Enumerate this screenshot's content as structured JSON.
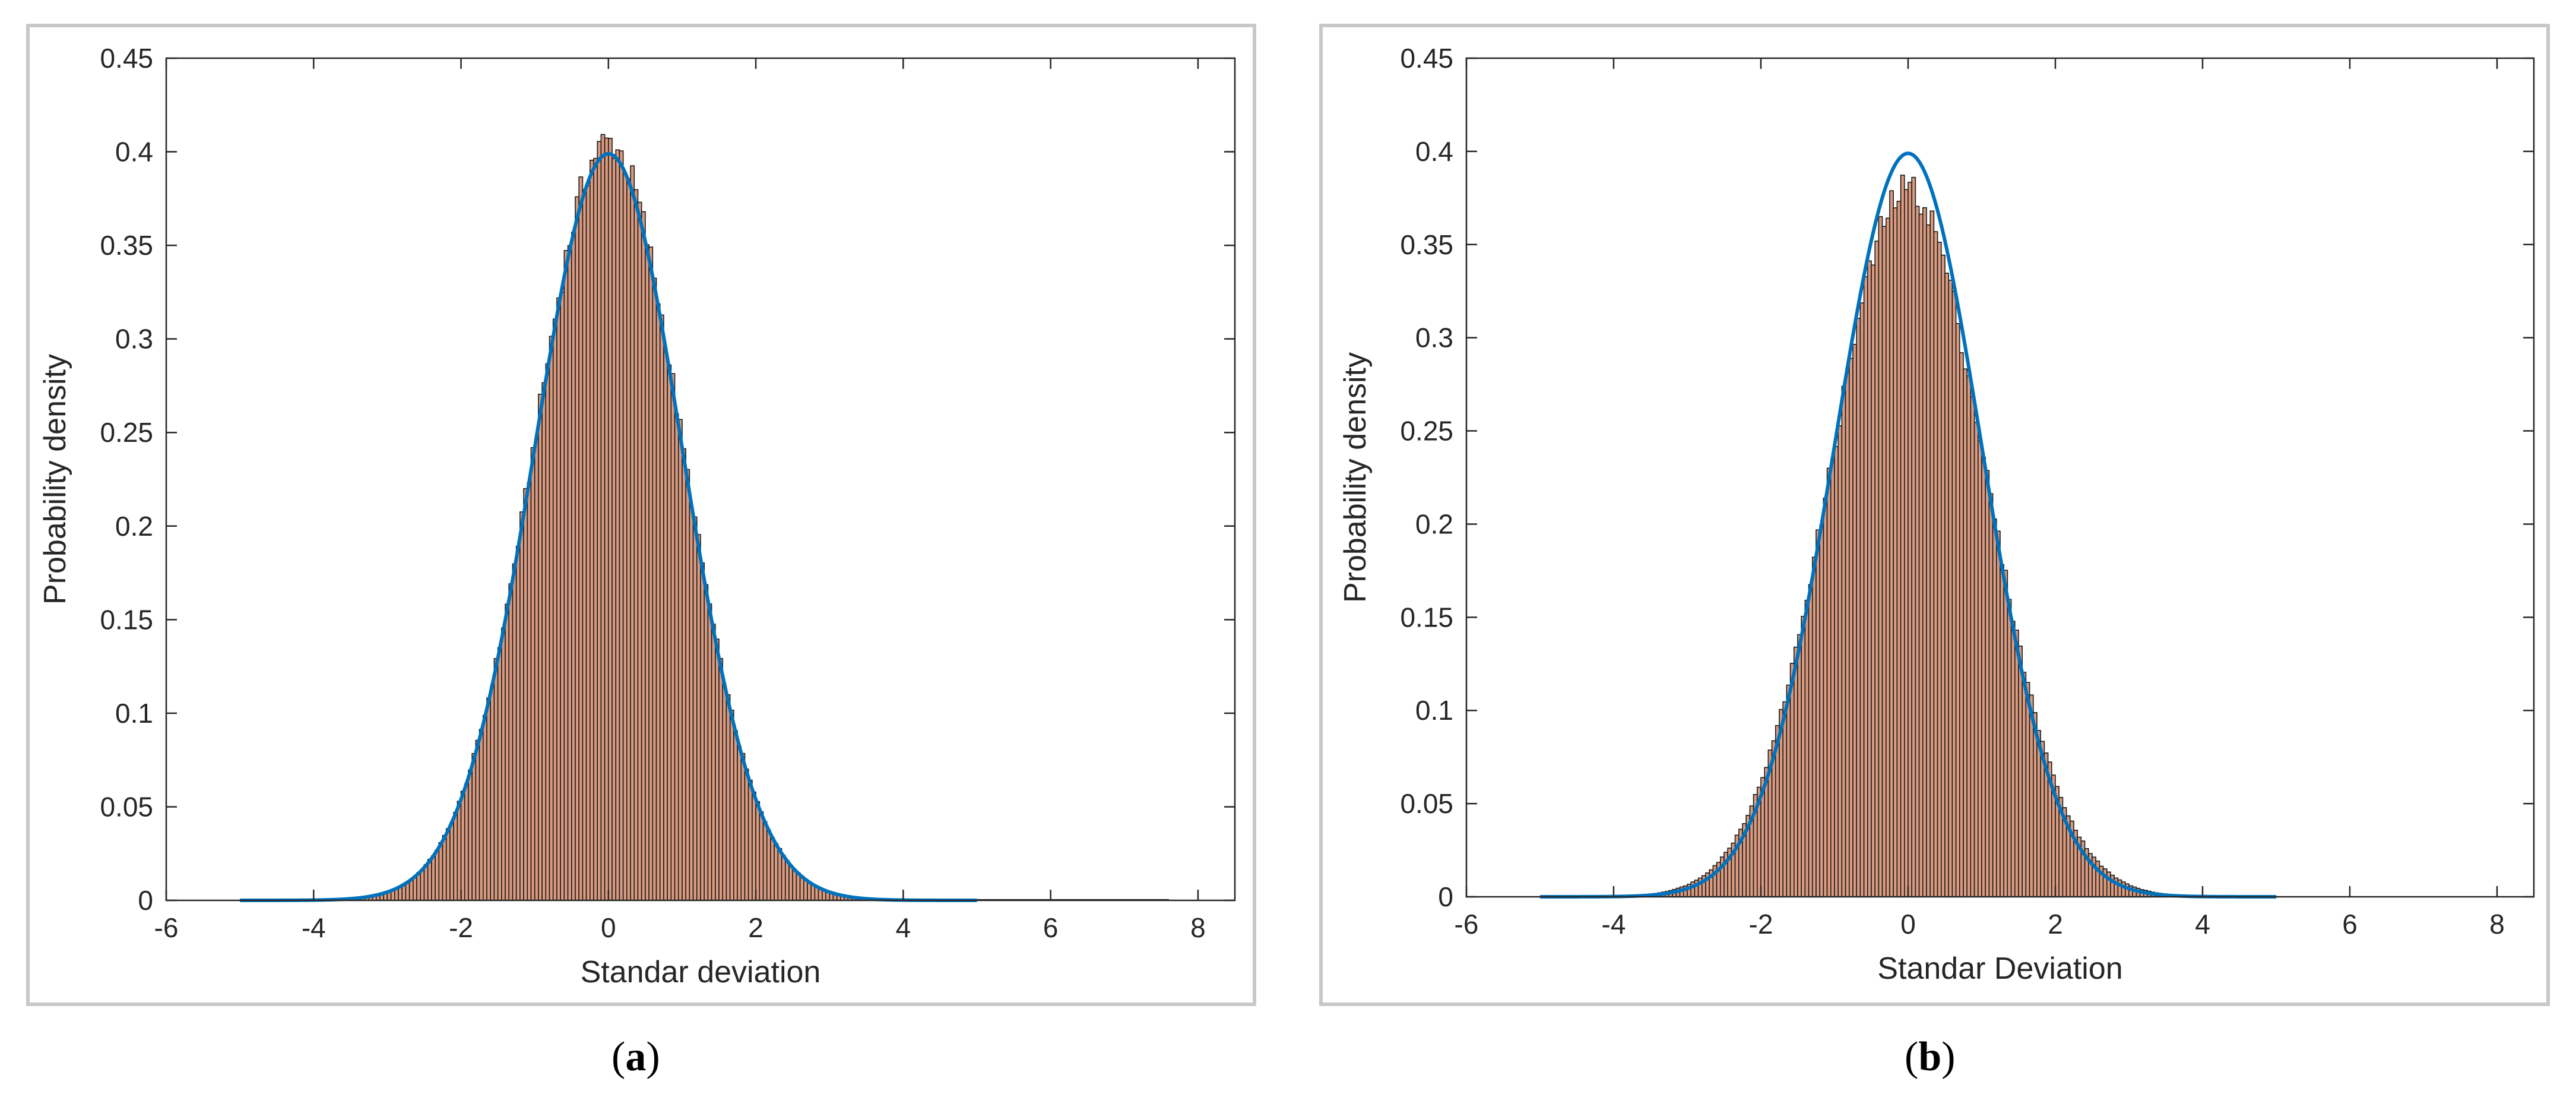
{
  "captions": [
    {
      "open": "(",
      "letter": "a",
      "close": ")"
    },
    {
      "open": "(",
      "letter": "b",
      "close": ")"
    }
  ],
  "colors": {
    "bar_fill": "#d99a7f",
    "bar_edge": "#1a1a1a",
    "curve": "#0072bd",
    "axis": "#262626"
  },
  "chart_data": [
    {
      "type": "bar",
      "subtype": "histogram with fitted normal pdf curve",
      "title": "",
      "xlabel": "Standar deviation",
      "ylabel": "Probability density",
      "xlim": [
        -6,
        8.5
      ],
      "ylim": [
        0,
        0.45
      ],
      "xticks": [
        "-6",
        "-4",
        "-2",
        "0",
        "2",
        "4",
        "6",
        "8"
      ],
      "yticks": [
        "0",
        "0.05",
        "0.1",
        "0.15",
        "0.2",
        "0.25",
        "0.3",
        "0.35",
        "0.4",
        "0.45"
      ],
      "grid": false,
      "histogram": {
        "mean": 0,
        "std": 1,
        "peak_density": 0.405,
        "x_range": [
          -4.3,
          7.6
        ],
        "bin_width": 0.05
      },
      "curve": {
        "name": "normal pdf",
        "mean": 0,
        "std": 1,
        "x_range": [
          -5,
          5
        ],
        "peak": 0.399
      }
    },
    {
      "type": "bar",
      "subtype": "histogram with fitted normal pdf curve",
      "title": "",
      "xlabel": "Standar Deviation",
      "ylabel": "Probability density",
      "xlim": [
        -6,
        8.5
      ],
      "ylim": [
        0,
        0.45
      ],
      "xticks": [
        "-6",
        "-4",
        "-2",
        "0",
        "2",
        "4",
        "6",
        "8"
      ],
      "yticks": [
        "0",
        "0.05",
        "0.1",
        "0.15",
        "0.2",
        "0.25",
        "0.3",
        "0.35",
        "0.4",
        "0.45"
      ],
      "grid": false,
      "histogram": {
        "mean": 0,
        "std": 1.05,
        "peak_density": 0.38,
        "x_range": [
          -3.8,
          3.9
        ],
        "bin_width": 0.05
      },
      "curve": {
        "name": "normal pdf",
        "mean": 0,
        "std": 1,
        "x_range": [
          -5,
          5
        ],
        "peak": 0.399
      }
    }
  ]
}
